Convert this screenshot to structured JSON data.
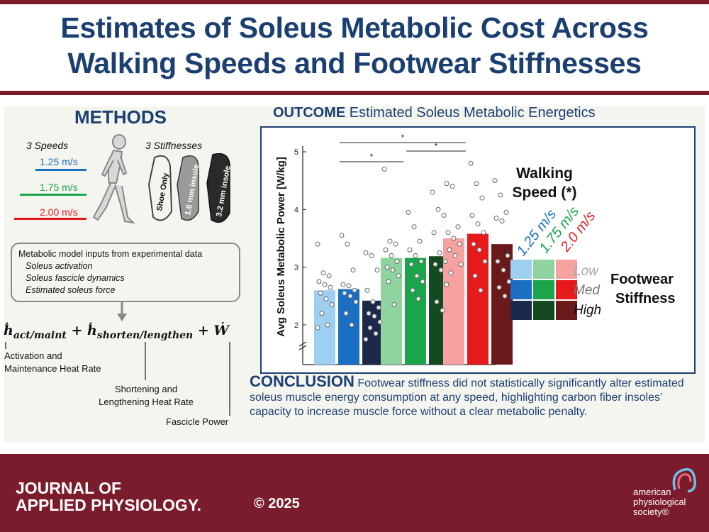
{
  "title": {
    "line1": "Estimates of Soleus Metabolic Cost Across",
    "line2": "Walking Speeds and Footwear Stiffnesses"
  },
  "methods": {
    "heading": "METHODS",
    "speeds_label": "3 Speeds",
    "stiffnesses_label": "3 Stiffnesses",
    "speeds": [
      {
        "label": "1.25 m/s",
        "color": "#1a6fc2"
      },
      {
        "label": "1.75 m/s",
        "color": "#1aa54a"
      },
      {
        "label": "2.00 m/s",
        "color": "#e51b1b"
      }
    ],
    "insoles": [
      "Shoe Only",
      "1.6 mm insole",
      "3.2 mm insole"
    ],
    "inputs_title": "Metabolic model inputs from experimental data",
    "inputs": [
      "Soleus activation",
      "Soleus fascicle dynamics",
      "Estimated soleus force"
    ],
    "equation": {
      "t1": "act/maint",
      "t2": "shorten/lengthen",
      "t3": "W"
    },
    "eq_labels": {
      "activation": [
        "Activation and",
        "Maintenance Heat Rate"
      ],
      "shortening": [
        "Shortening and",
        "Lengthening Heat Rate"
      ],
      "fascicle": "Fascicle Power"
    }
  },
  "outcome": {
    "heading": "OUTCOME",
    "subtitle": "Estimated Soleus Metabolic Energetics"
  },
  "chart_data": {
    "type": "bar",
    "ylabel": "Avg Soleus Metabolic Power [W/kg]",
    "ylim": [
      1.3,
      5.0
    ],
    "y_ticks": [
      "2",
      "3",
      "4",
      "5"
    ],
    "axis_break": true,
    "grid": false,
    "groups": [
      "1.25 m/s",
      "1.75 m/s",
      "2.0 m/s"
    ],
    "stiffness_levels": [
      "Low",
      "Med",
      "High"
    ],
    "values": [
      [
        2.6,
        2.62,
        2.42
      ],
      [
        3.16,
        3.16,
        3.19
      ],
      [
        3.5,
        3.58,
        3.4
      ]
    ],
    "colors": [
      [
        "#9dd0f0",
        "#1a6fc2",
        "#1b2a4a"
      ],
      [
        "#8ed3a0",
        "#1aa54a",
        "#134a22"
      ],
      [
        "#f7a1a1",
        "#e51b1b",
        "#6a1a1a"
      ]
    ],
    "points": [
      [
        [
          3.4,
          2.9,
          2.85,
          2.75,
          2.7,
          2.65,
          2.55,
          2.45,
          2.35,
          2.2,
          2.0,
          1.95
        ],
        [
          3.55,
          3.4,
          2.95,
          2.7,
          2.68,
          2.6,
          2.55,
          2.5,
          2.4,
          2.2,
          2.0
        ],
        [
          3.25,
          3.2,
          2.95,
          2.6,
          2.4,
          2.3,
          2.2,
          2.15,
          2.05,
          1.95,
          1.85,
          1.75
        ]
      ],
      [
        [
          4.7,
          3.45,
          3.4,
          3.3,
          3.2,
          3.1,
          3.0,
          2.95,
          2.85,
          2.75,
          2.35
        ],
        [
          3.95,
          3.7,
          3.45,
          3.3,
          3.2,
          3.1,
          3.05,
          2.85,
          2.75,
          2.6,
          2.45
        ],
        [
          4.3,
          4.0,
          3.9,
          3.6,
          3.25,
          3.1,
          3.05,
          2.95,
          2.7,
          2.4,
          2.25
        ]
      ],
      [
        [
          4.45,
          4.4,
          3.7,
          3.6,
          3.5,
          3.4,
          3.3,
          3.2,
          3.05,
          2.9
        ],
        [
          4.8,
          4.45,
          4.2,
          3.9,
          3.75,
          3.6,
          3.4,
          3.3,
          3.1,
          2.85,
          2.6
        ],
        [
          4.5,
          4.25,
          3.95,
          3.85,
          3.8,
          3.2,
          3.1,
          2.95,
          2.75,
          2.65,
          2.5
        ]
      ]
    ],
    "significance": [
      {
        "from_group": 0,
        "to_group": 2,
        "label": "*"
      },
      {
        "from_group": 1,
        "to_group": 2,
        "label": "*"
      },
      {
        "from_group": 0,
        "to_group": 1,
        "label": "*"
      }
    ]
  },
  "legend": {
    "walking_speed_title": [
      "Walking",
      "Speed (*)"
    ],
    "speed_labels": [
      "1.25 m/s",
      "1.75 m/s",
      "2.0 m/s"
    ],
    "footwear_title": [
      "Footwear",
      "Stiffness"
    ],
    "stiffness_labels": [
      "Low",
      "Med",
      "High"
    ]
  },
  "conclusion": {
    "heading": "CONCLUSION",
    "text": "Footwear stiffness did not statistically significantly alter estimated soleus muscle energy consumption at any speed, highlighting carbon fiber insoles’ capacity to increase muscle force without a clear metabolic penalty."
  },
  "footer": {
    "journal_line1": "JOURNAL OF",
    "journal_line2": "APPLIED PHYSIOLOGY.",
    "copyright": "© 2025",
    "society_lines": [
      "american",
      "physiological",
      "society®"
    ],
    "colors": {
      "footer_bg": "#7a1c2c",
      "title_blue": "#1c3f72"
    }
  }
}
